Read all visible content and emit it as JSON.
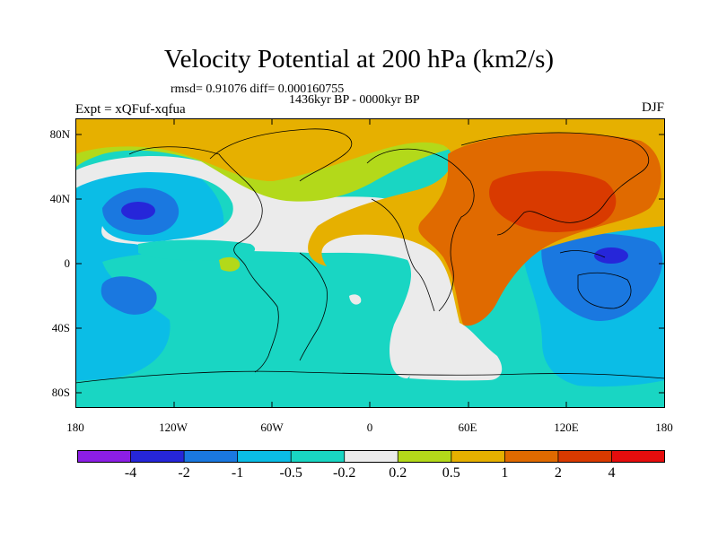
{
  "title": "Velocity Potential at 200 hPa (km2/s)",
  "stats": "rmsd= 0.91076 diff= 0.000160755",
  "period": "1436kyr BP - 0000kyr BP",
  "expt": "Expt = xQFuf-xqfua",
  "season": "DJF",
  "lat_labels": [
    "80N",
    "40N",
    "0",
    "40S",
    "80S"
  ],
  "lon_labels": [
    "180",
    "120W",
    "60W",
    "0",
    "60E",
    "120E",
    "180"
  ],
  "colorbar": {
    "labels": [
      "-4",
      "-2",
      "-1",
      "-0.5",
      "-0.2",
      "0.2",
      "0.5",
      "1",
      "2",
      "4"
    ],
    "colors": [
      "#8c1ee6",
      "#2626d9",
      "#1a78e0",
      "#0bbde6",
      "#19d6c3",
      "#ebebeb",
      "#b3d91a",
      "#e6b000",
      "#e06a00",
      "#d93a00",
      "#e60d0d"
    ]
  }
}
